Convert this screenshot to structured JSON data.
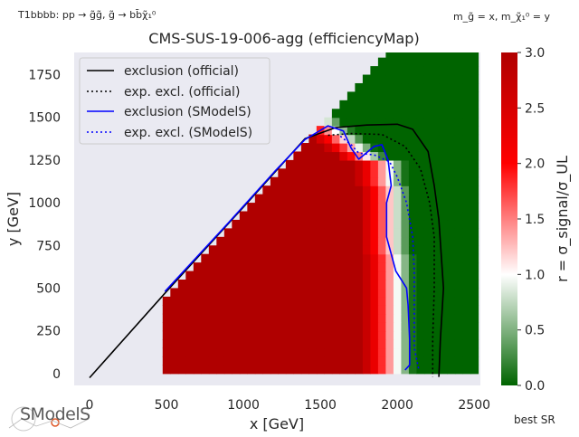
{
  "header": {
    "process": "T1bbbb: pp → g̃g̃, g̃ → bb̄χ̃₁⁰",
    "mass_note": "m_g̃ = x, m_χ̃₁⁰ = y",
    "title": "CMS-SUS-19-006-agg (efficiencyMap)"
  },
  "footer": {
    "logo_text": "SModelS",
    "best_sr": "best SR"
  },
  "chart_data": {
    "type": "heatmap",
    "title": "CMS-SUS-19-006-agg (efficiencyMap)",
    "xlabel": "x [GeV]",
    "ylabel": "y [GeV]",
    "xlim": [
      -100,
      2540
    ],
    "ylim": [
      -70,
      1880
    ],
    "xticks": [
      0,
      500,
      1000,
      1500,
      2000,
      2500
    ],
    "yticks": [
      0,
      250,
      500,
      750,
      1000,
      1250,
      1500,
      1750
    ],
    "colorbar": {
      "label": "r = σ_signal/σ_UL",
      "range": [
        0.0,
        3.0
      ],
      "ticks": [
        "0.0",
        "0.5",
        "1.0",
        "1.5",
        "2.0",
        "2.5",
        "3.0"
      ]
    },
    "legend": {
      "position": "top-left",
      "entries": [
        {
          "label": "exclusion (official)",
          "color": "#000000",
          "style": "solid"
        },
        {
          "label": "exp. excl. (official)",
          "color": "#000000",
          "style": "dotted"
        },
        {
          "label": "exclusion (SModelS)",
          "color": "#0000ff",
          "style": "solid"
        },
        {
          "label": "exp. excl. (SModelS)",
          "color": "#0000ff",
          "style": "dotted"
        }
      ]
    },
    "series": [
      {
        "name": "exclusion (official)",
        "x": [
          0,
          500,
          1000,
          1400,
          1600,
          1800,
          2000,
          2100,
          2200,
          2240,
          2270,
          2300,
          2280,
          2270
        ],
        "y": [
          -25,
          480,
          975,
          1375,
          1440,
          1455,
          1460,
          1430,
          1300,
          1100,
          900,
          500,
          200,
          -20
        ]
      },
      {
        "name": "exp. excl. (official)",
        "x": [
          1550,
          1700,
          1900,
          2050,
          2150,
          2210,
          2240,
          2240,
          2230,
          2230
        ],
        "y": [
          1395,
          1405,
          1400,
          1330,
          1200,
          1000,
          800,
          500,
          200,
          -20
        ]
      },
      {
        "name": "exclusion (SModelS)",
        "x": [
          490,
          900,
          1200,
          1400,
          1550,
          1650,
          1700,
          1750,
          1850,
          1900,
          1940,
          1960,
          1930,
          1930,
          1990,
          2060,
          2070,
          2080,
          2080,
          2050
        ],
        "y": [
          480,
          880,
          1180,
          1370,
          1450,
          1420,
          1320,
          1255,
          1330,
          1340,
          1250,
          1100,
          1000,
          800,
          600,
          500,
          400,
          200,
          50,
          20
        ]
      },
      {
        "name": "exp. excl. (SModelS)",
        "x": [
          1630,
          1700,
          1750,
          1850,
          1950,
          2000,
          2060,
          2100,
          2110,
          2110,
          2110,
          2140
        ],
        "y": [
          1390,
          1340,
          1290,
          1280,
          1240,
          1150,
          1000,
          800,
          600,
          400,
          150,
          20
        ]
      }
    ]
  }
}
